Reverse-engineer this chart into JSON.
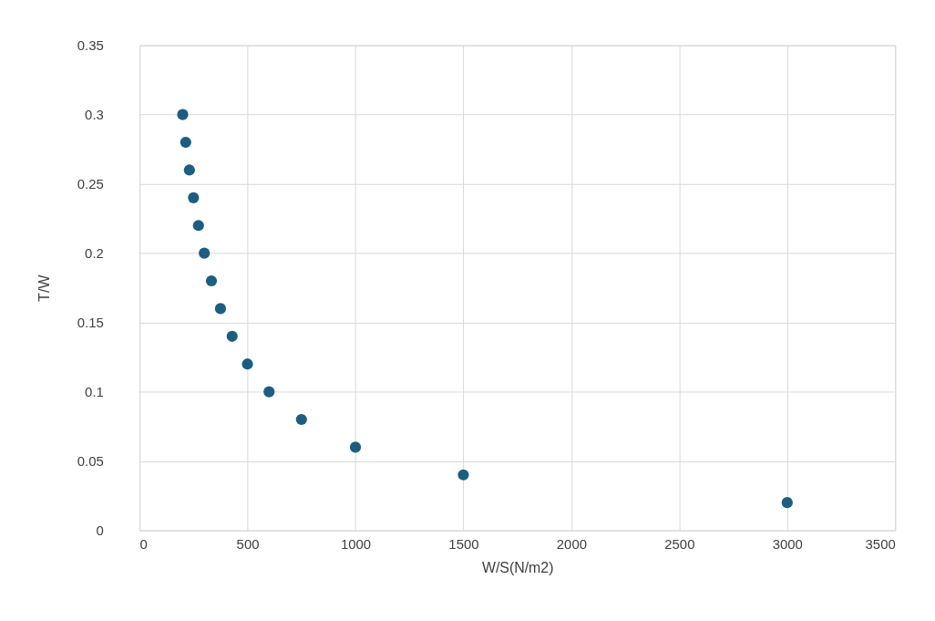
{
  "chart_data": {
    "type": "scatter",
    "xlabel": "W/S(N/m2)",
    "ylabel": "T/W",
    "x": [
      200,
      214,
      231,
      250,
      273,
      300,
      333,
      375,
      429,
      500,
      600,
      750,
      1000,
      1500,
      3000
    ],
    "series": [
      {
        "color": "#1b5e82",
        "values": [
          0.3,
          0.28,
          0.26,
          0.24,
          0.22,
          0.2,
          0.18,
          0.16,
          0.14,
          0.12,
          0.1,
          0.08,
          0.06,
          0.04,
          0.02
        ]
      }
    ],
    "xlim": [
      0,
      3500
    ],
    "xticks": [
      0,
      500,
      1000,
      1500,
      2000,
      2500,
      3000,
      3500
    ],
    "ylim": [
      0,
      0.35
    ],
    "yticks": [
      0,
      0.05,
      0.1,
      0.15,
      0.2,
      0.25,
      0.3,
      0.35
    ],
    "grid": true,
    "marker": "circle"
  }
}
